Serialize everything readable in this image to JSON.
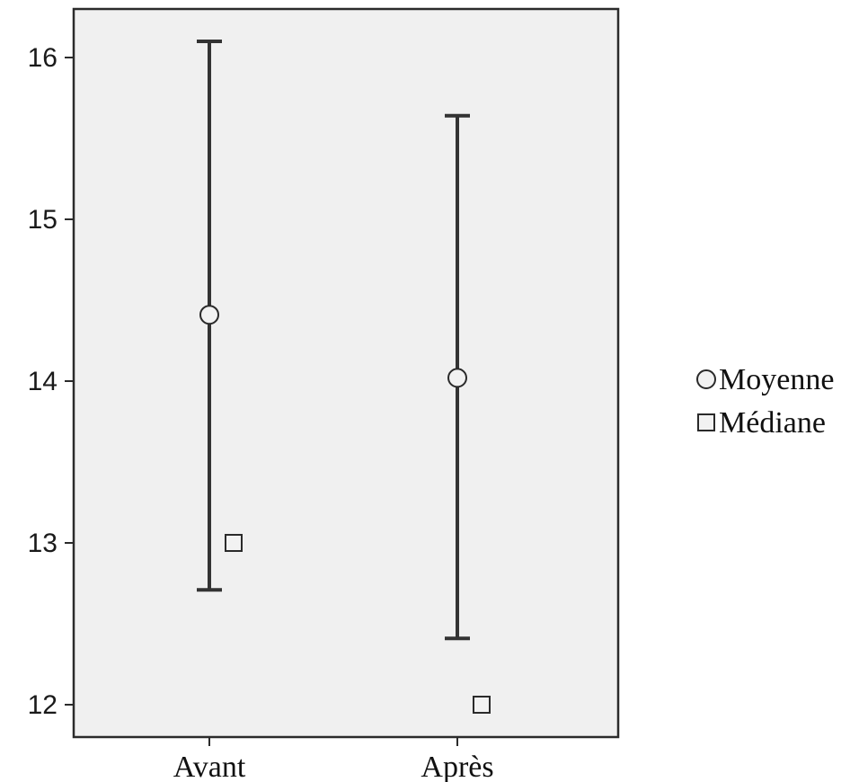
{
  "chart_data": {
    "type": "errorbar",
    "categories": [
      "Avant",
      "Après"
    ],
    "series": [
      {
        "name": "Moyenne",
        "marker": "circle",
        "values": [
          14.41,
          14.02
        ]
      },
      {
        "name": "Médiane",
        "marker": "square",
        "values": [
          13,
          12
        ]
      }
    ],
    "error_bars": [
      {
        "low": 12.71,
        "high": 16.1
      },
      {
        "low": 12.41,
        "high": 15.64
      }
    ],
    "ylim": [
      11.8,
      16.3
    ],
    "yticks": [
      "12",
      "13",
      "14",
      "15",
      "16"
    ],
    "legend": {
      "position": "right"
    },
    "grid": false,
    "colors": {
      "plot_background": "#f0f0f0",
      "frame": "#2b2b2b",
      "error_bar": "#333333",
      "marker_fill": "#f2f2f2",
      "marker_stroke": "#2a2a2a"
    }
  }
}
